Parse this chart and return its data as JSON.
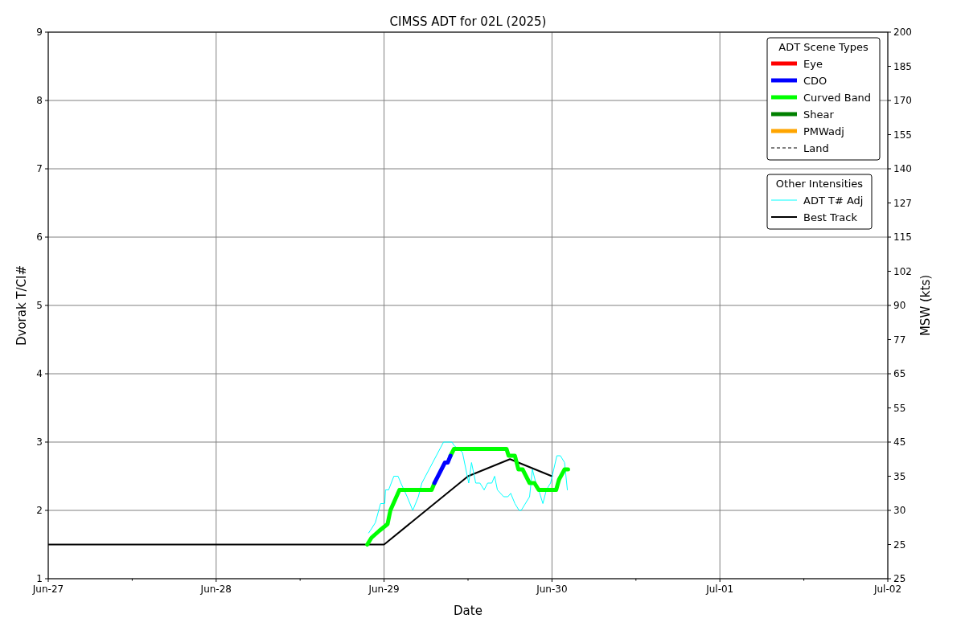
{
  "chart_data": {
    "type": "line",
    "title": "CIMSS ADT for 02L (2025)",
    "xlabel": "Date",
    "ylabel": "Dvorak T/CI#",
    "y2label": "MSW (kts)",
    "legend_title": "ADT Scene Types",
    "annotations": [
      "Other Intensities"
    ],
    "xlim": [
      "2025-06-27T00:00",
      "2025-07-02T00:00"
    ],
    "xticks": [
      {
        "value": "2025-06-27T00:00",
        "label": "Jun-27"
      },
      {
        "value": "2025-06-27T12:00",
        "label": null
      },
      {
        "value": "2025-06-28T00:00",
        "label": "Jun-28"
      },
      {
        "value": "2025-06-28T12:00",
        "label": null
      },
      {
        "value": "2025-06-29T00:00",
        "label": "Jun-29"
      },
      {
        "value": "2025-06-29T12:00",
        "label": null
      },
      {
        "value": "2025-06-30T00:00",
        "label": "Jun-30"
      },
      {
        "value": "2025-06-30T12:00",
        "label": null
      },
      {
        "value": "2025-07-01T00:00",
        "label": "Jul-01"
      },
      {
        "value": "2025-07-01T12:00",
        "label": null
      },
      {
        "value": "2025-07-02T00:00",
        "label": "Jul-02"
      }
    ],
    "ylim": [
      1,
      9
    ],
    "yticks": [
      1,
      2,
      3,
      4,
      5,
      6,
      7,
      8,
      9
    ],
    "y2_categories": [
      "200",
      "185",
      "170",
      "155",
      "140",
      "127",
      "115",
      "102",
      "90",
      "77",
      "65",
      "55",
      "45",
      "35",
      "30",
      "25",
      "25"
    ],
    "grid": true,
    "legend": "top right",
    "series": [
      {
        "name": "Eye",
        "color": "#ff0000"
      },
      {
        "name": "CDO",
        "color": "#0000ff",
        "x": [
          "2025-06-29T07:12",
          "2025-06-29T08:42",
          "2025-06-29T09:06",
          "2025-06-29T09:30"
        ],
        "values": [
          2.4,
          2.7,
          2.7,
          2.8
        ]
      },
      {
        "name": "Curved Band",
        "color": "#00ff00",
        "x": [
          "2025-06-28T21:36",
          "2025-06-28T22:12",
          "2025-06-28T23:18",
          "2025-06-28T23:54",
          "2025-06-29T00:30",
          "2025-06-29T00:54",
          "2025-06-29T02:12",
          "2025-06-29T06:48",
          "2025-06-29T07:12",
          "2025-06-29T08:00",
          "2025-06-29T09:30",
          "2025-06-29T10:00",
          "2025-06-29T17:30",
          "2025-06-29T17:48",
          "2025-06-29T18:42",
          "2025-06-29T19:12",
          "2025-06-29T19:48",
          "2025-06-29T20:48",
          "2025-06-29T21:30",
          "2025-06-29T22:06",
          "2025-06-30T00:36",
          "2025-06-30T01:00",
          "2025-06-30T01:48",
          "2025-06-30T02:18"
        ],
        "values": [
          1.5,
          1.6,
          1.7,
          1.75,
          1.8,
          2.0,
          2.3,
          2.3,
          2.4,
          null,
          2.8,
          2.9,
          2.9,
          2.8,
          2.8,
          2.6,
          2.6,
          2.4,
          2.4,
          2.3,
          2.3,
          2.45,
          2.6,
          2.6
        ]
      },
      {
        "name": "Shear",
        "color": "#008000"
      },
      {
        "name": "PMWadj",
        "color": "#ffa500"
      },
      {
        "name": "Land",
        "color": "#000000",
        "line_style": "dashed"
      },
      {
        "name": "ADT T# Adj",
        "color": "#00ffff",
        "x": [
          "2025-06-28T21:48",
          "2025-06-28T22:12",
          "2025-06-28T22:45",
          "2025-06-28T23:30",
          "2025-06-29T00:06",
          "2025-06-29T00:12",
          "2025-06-29T00:39",
          "2025-06-29T01:24",
          "2025-06-29T02:00",
          "2025-06-29T02:24",
          "2025-06-29T03:18",
          "2025-06-29T04:06",
          "2025-06-29T04:54",
          "2025-06-29T05:24",
          "2025-06-29T08:30",
          "2025-06-29T09:42",
          "2025-06-29T10:00",
          "2025-06-29T11:12",
          "2025-06-29T12:06",
          "2025-06-29T12:30",
          "2025-06-29T13:06",
          "2025-06-29T13:42",
          "2025-06-29T14:18",
          "2025-06-29T14:48",
          "2025-06-29T15:24",
          "2025-06-29T15:48",
          "2025-06-29T16:12",
          "2025-06-29T17:06",
          "2025-06-29T17:42",
          "2025-06-29T18:06",
          "2025-06-29T18:42",
          "2025-06-29T19:18",
          "2025-06-29T19:36",
          "2025-06-29T20:48",
          "2025-06-29T21:12",
          "2025-06-29T21:42",
          "2025-06-29T22:06",
          "2025-06-29T22:42",
          "2025-06-29T23:12",
          "2025-06-29T23:48",
          "2025-06-30T00:42",
          "2025-06-30T01:12",
          "2025-06-30T01:48",
          "2025-06-30T02:12"
        ],
        "values": [
          1.67,
          1.73,
          1.82,
          2.1,
          2.1,
          2.3,
          2.3,
          2.5,
          2.5,
          2.4,
          2.2,
          2.0,
          2.2,
          2.4,
          3.0,
          3.0,
          2.95,
          2.85,
          2.4,
          2.7,
          2.4,
          2.4,
          2.3,
          2.4,
          2.4,
          2.5,
          2.3,
          2.2,
          2.2,
          2.25,
          2.1,
          2.0,
          2.0,
          2.2,
          2.6,
          2.4,
          2.3,
          2.1,
          2.3,
          2.4,
          2.8,
          2.8,
          2.7,
          2.3
        ]
      },
      {
        "name": "Best Track",
        "color": "#000000",
        "x": [
          "2025-06-27T00:00",
          "2025-06-29T00:00",
          "2025-06-29T12:00",
          "2025-06-29T18:00",
          "2025-06-30T00:00"
        ],
        "values": [
          1.5,
          1.5,
          2.5,
          2.75,
          2.5
        ]
      }
    ]
  }
}
